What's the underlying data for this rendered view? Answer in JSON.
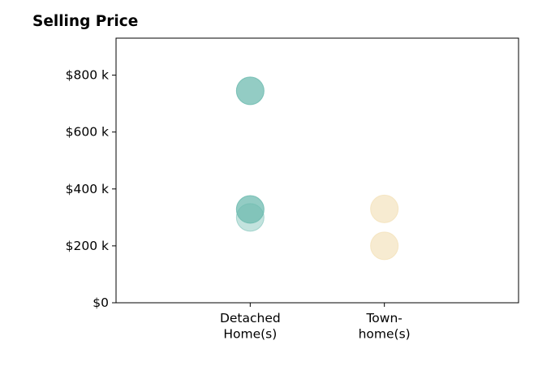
{
  "chart_data": {
    "type": "scatter",
    "title": "Selling Price",
    "xlabel": "",
    "ylabel": "",
    "categories": [
      [
        "Detached",
        "Home(s)"
      ],
      [
        "Town-",
        "home(s)"
      ]
    ],
    "y_ticks": [
      {
        "value": 0,
        "label": "$0"
      },
      {
        "value": 200,
        "label": "$200 k"
      },
      {
        "value": 400,
        "label": "$400 k"
      },
      {
        "value": 600,
        "label": "$600 k"
      },
      {
        "value": 800,
        "label": "$800 k"
      }
    ],
    "ylim": [
      0,
      930
    ],
    "xlim": [
      -1,
      2
    ],
    "grid": false,
    "series": [
      {
        "category_index": 0,
        "color": "#69b9ad",
        "points": [
          {
            "y": 745,
            "opacity": 0.72
          },
          {
            "y": 328,
            "opacity": 0.72
          },
          {
            "y": 300,
            "opacity": 0.4
          }
        ]
      },
      {
        "category_index": 1,
        "color": "#f2dfb4",
        "points": [
          {
            "y": 330,
            "opacity": 0.62
          },
          {
            "y": 200,
            "opacity": 0.62
          }
        ]
      }
    ]
  }
}
